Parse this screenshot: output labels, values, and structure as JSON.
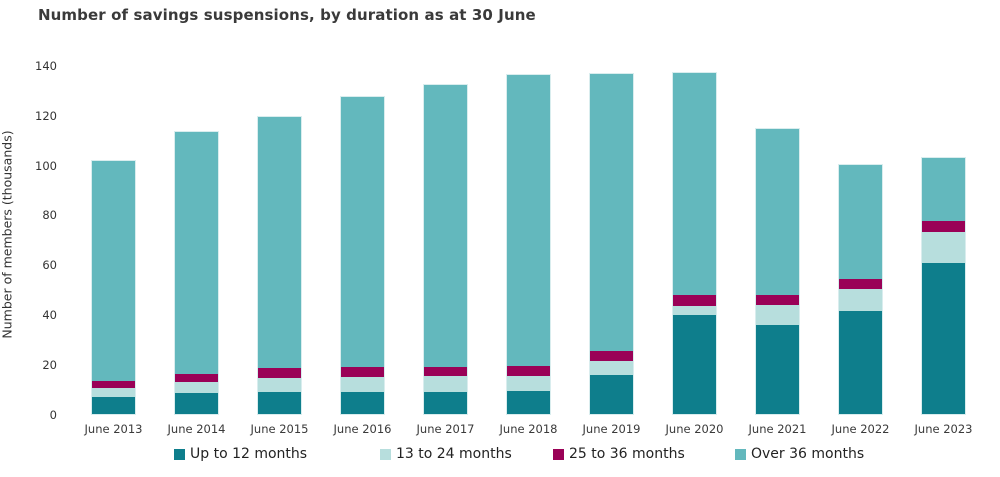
{
  "chart_data": {
    "type": "bar",
    "stacked": true,
    "title": "Number of savings suspensions, by duration as at 30 June",
    "ylabel": "Number of members (thousands)",
    "xlabel": "",
    "ylim": [
      0,
      140
    ],
    "yticks": [
      0,
      20,
      40,
      60,
      80,
      100,
      120,
      140
    ],
    "grid": false,
    "legend_position": "bottom",
    "categories": [
      "June 2013",
      "June 2014",
      "June 2015",
      "June 2016",
      "June 2017",
      "June 2018",
      "June 2019",
      "June 2020",
      "June 2021",
      "June 2022",
      "June 2023"
    ],
    "series": [
      {
        "name": "Up to 12 months",
        "color": "#0e7e8c",
        "values": [
          7.0,
          8.5,
          9.2,
          9.0,
          9.2,
          9.4,
          15.9,
          40.0,
          36.0,
          41.7,
          61.0
        ]
      },
      {
        "name": "13 to 24 months",
        "color": "#b7dedd",
        "values": [
          3.5,
          4.7,
          5.6,
          6.2,
          6.1,
          6.1,
          5.6,
          3.6,
          8.0,
          8.6,
          12.2
        ]
      },
      {
        "name": "25 to 36 months",
        "color": "#9a0157",
        "values": [
          2.8,
          3.1,
          3.8,
          3.7,
          3.9,
          4.1,
          4.0,
          4.4,
          4.0,
          4.2,
          4.6
        ]
      },
      {
        "name": "Over 36 months",
        "color": "#63b8bd",
        "values": [
          88.5,
          97.3,
          100.9,
          108.9,
          113.3,
          116.8,
          111.2,
          89.3,
          66.7,
          45.6,
          25.4
        ]
      }
    ],
    "totals": [
      101.8,
      113.6,
      119.5,
      127.8,
      132.5,
      136.4,
      136.7,
      137.3,
      114.7,
      100.1,
      103.2
    ],
    "colors": {
      "title_text": "#3a3a3a",
      "axis_text": "#333333",
      "bar_edge": "#d9edee",
      "background": "#ffffff"
    }
  }
}
